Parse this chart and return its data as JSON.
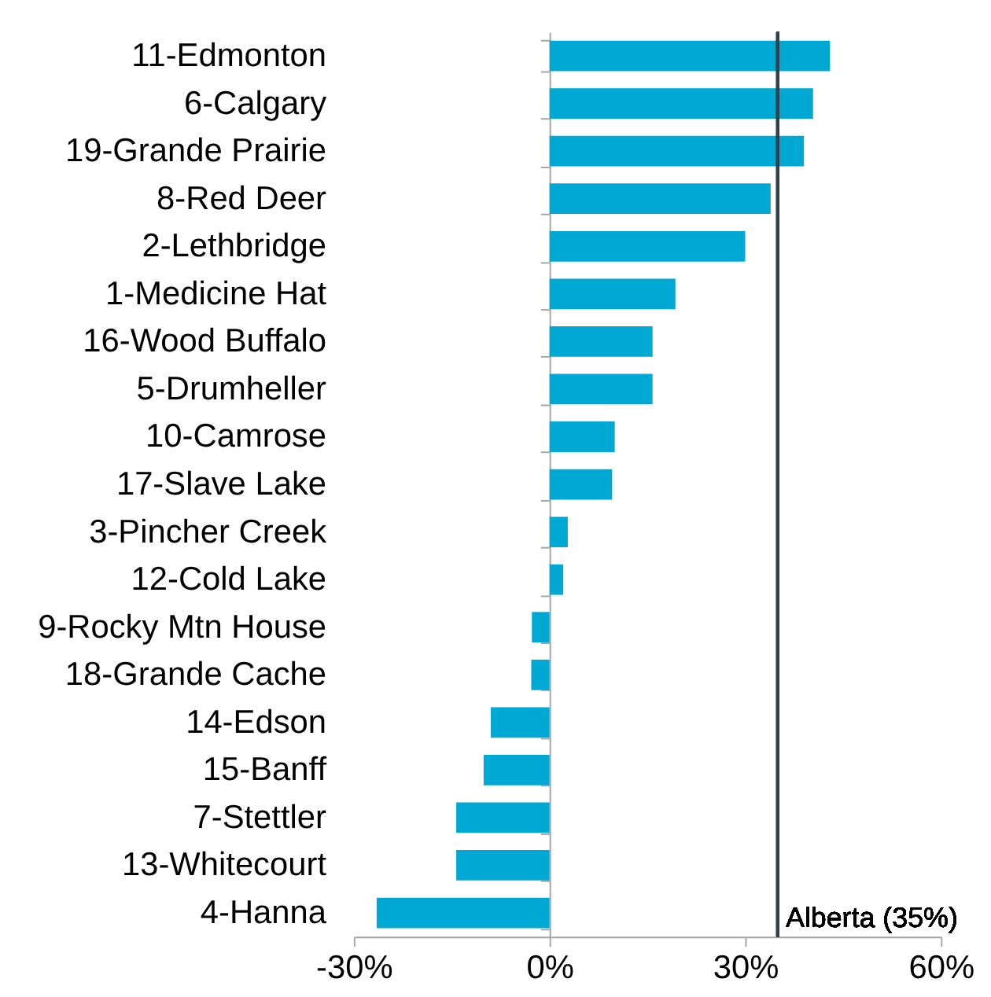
{
  "chart_data": {
    "type": "bar",
    "orientation": "horizontal",
    "categories": [
      "11-Edmonton",
      "6-Calgary",
      "19-Grande Prairie",
      "8-Red Deer",
      "2-Lethbridge",
      "1-Medicine Hat",
      "16-Wood Buffalo",
      "5-Drumheller",
      "10-Camrose",
      "17-Slave Lake",
      "3-Pincher Creek",
      "12-Cold Lake",
      "9-Rocky Mtn House",
      "18-Grande Cache",
      "14-Edson",
      "15-Banff",
      "7-Stettler",
      "13-Whitecourt",
      "4-Hanna"
    ],
    "values": [
      43,
      40.4,
      39,
      33.9,
      30,
      19.3,
      15.8,
      15.8,
      10,
      9.6,
      2.8,
      2.1,
      -2.7,
      -2.8,
      -9,
      -10.1,
      -14.3,
      -14.3,
      -26.5
    ],
    "color": "#00a9d3",
    "xlim": [
      -30,
      60
    ],
    "xticks": [
      {
        "value": -30,
        "label": "-30%"
      },
      {
        "value": 0,
        "label": "0%"
      },
      {
        "value": 30,
        "label": "30%"
      },
      {
        "value": 60,
        "label": "60%"
      }
    ],
    "ref_lines": [
      {
        "axis": "x",
        "value": 35,
        "label": "Alberta (35%)",
        "color": "#333f48"
      }
    ]
  }
}
